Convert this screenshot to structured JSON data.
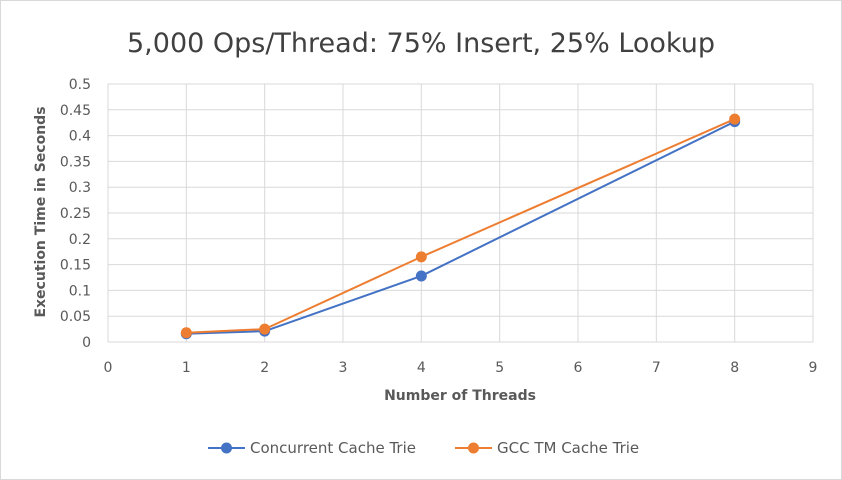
{
  "chart_data": {
    "type": "scatter",
    "title": "5,000 Ops/Thread: 75% Insert, 25% Lookup",
    "xlabel": "Number of Threads",
    "ylabel": "Execution Time in Seconds",
    "xlim": [
      0,
      9
    ],
    "ylim": [
      0,
      0.5
    ],
    "x_ticks": [
      "0",
      "1",
      "2",
      "3",
      "4",
      "5",
      "6",
      "7",
      "8",
      "9"
    ],
    "y_ticks": [
      "0",
      "0.05",
      "0.1",
      "0.15",
      "0.2",
      "0.25",
      "0.3",
      "0.35",
      "0.4",
      "0.45",
      "0.5"
    ],
    "grid": true,
    "legend_position": "bottom",
    "series": [
      {
        "name": "Concurrent Cache Trie",
        "color": "#4472c4",
        "x": [
          1,
          2,
          4,
          8
        ],
        "y": [
          0.016,
          0.021,
          0.128,
          0.427
        ]
      },
      {
        "name": "GCC TM Cache Trie",
        "color": "#ed7d31",
        "x": [
          1,
          2,
          4,
          8
        ],
        "y": [
          0.018,
          0.025,
          0.165,
          0.432
        ]
      }
    ]
  }
}
